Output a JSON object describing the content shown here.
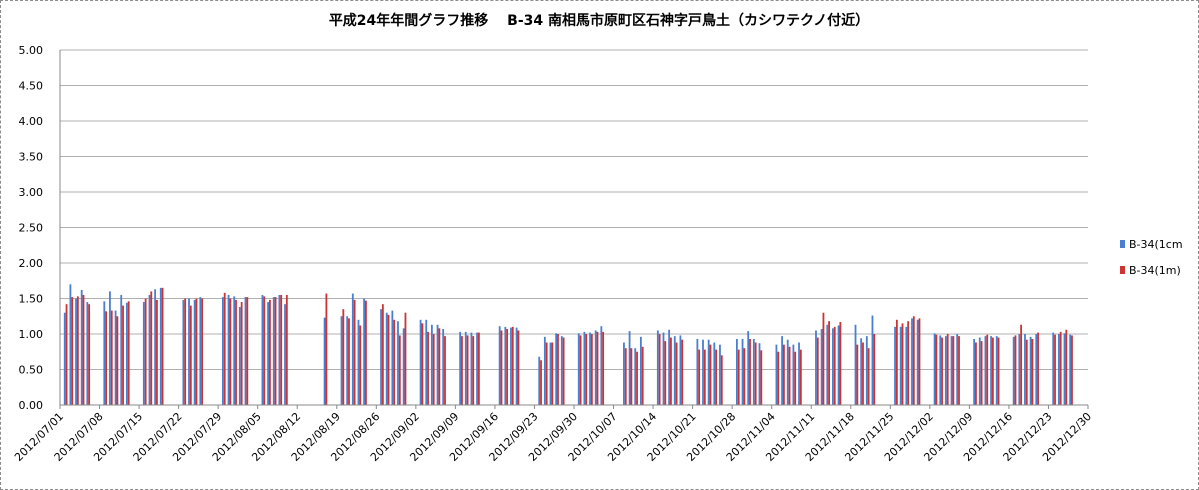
{
  "chart_data": {
    "type": "bar",
    "title": "平成24年年間グラフ推移　 B-34 南相馬市原町区石神字戸鳥土（カシワテクノ付近）",
    "xlabel": "",
    "ylabel": "",
    "ylim": [
      0,
      5
    ],
    "yticks": [
      "0.00",
      "0.50",
      "1.00",
      "1.50",
      "2.00",
      "2.50",
      "3.00",
      "3.50",
      "4.00",
      "4.50",
      "5.00"
    ],
    "xlim": [
      "2012/07/01",
      "2012/12/30"
    ],
    "xtick_labels": [
      "2012/07/01",
      "2012/07/08",
      "2012/07/15",
      "2012/07/22",
      "2012/07/29",
      "2012/08/05",
      "2012/08/12",
      "2012/08/19",
      "2012/08/26",
      "2012/09/02",
      "2012/09/09",
      "2012/09/16",
      "2012/09/23",
      "2012/09/30",
      "2012/10/07",
      "2012/10/14",
      "2012/10/21",
      "2012/10/28",
      "2012/11/04",
      "2012/11/11",
      "2012/11/18",
      "2012/11/25",
      "2012/12/02",
      "2012/12/09",
      "2012/12/16",
      "2012/12/23",
      "2012/12/30"
    ],
    "grid": "horizontal",
    "legend_position": "right",
    "colors": {
      "blue": "#4a7fd0",
      "red": "#cc3333"
    },
    "series": [
      {
        "name": "B-34(1cm",
        "color": "#4a7fd0",
        "points": [
          [
            "2012/07/02",
            1.3
          ],
          [
            "2012/07/03",
            1.7
          ],
          [
            "2012/07/04",
            1.5
          ],
          [
            "2012/07/05",
            1.62
          ],
          [
            "2012/07/06",
            1.45
          ],
          [
            "2012/07/09",
            1.46
          ],
          [
            "2012/07/10",
            1.6
          ],
          [
            "2012/07/11",
            1.33
          ],
          [
            "2012/07/12",
            1.55
          ],
          [
            "2012/07/13",
            1.44
          ],
          [
            "2012/07/16",
            1.45
          ],
          [
            "2012/07/17",
            1.55
          ],
          [
            "2012/07/18",
            1.63
          ],
          [
            "2012/07/19",
            1.65
          ],
          [
            "2012/07/23",
            1.48
          ],
          [
            "2012/07/24",
            1.5
          ],
          [
            "2012/07/25",
            1.48
          ],
          [
            "2012/07/26",
            1.52
          ],
          [
            "2012/07/30",
            1.52
          ],
          [
            "2012/07/31",
            1.55
          ],
          [
            "2012/08/01",
            1.53
          ],
          [
            "2012/08/02",
            1.38
          ],
          [
            "2012/08/03",
            1.52
          ],
          [
            "2012/08/06",
            1.55
          ],
          [
            "2012/08/07",
            1.45
          ],
          [
            "2012/08/08",
            1.52
          ],
          [
            "2012/08/09",
            1.55
          ],
          [
            "2012/08/10",
            1.42
          ],
          [
            "2012/08/17",
            1.23
          ],
          [
            "2012/08/20",
            1.25
          ],
          [
            "2012/08/21",
            1.25
          ],
          [
            "2012/08/22",
            1.57
          ],
          [
            "2012/08/23",
            1.2
          ],
          [
            "2012/08/24",
            1.5
          ],
          [
            "2012/08/27",
            1.35
          ],
          [
            "2012/08/28",
            1.3
          ],
          [
            "2012/08/29",
            1.33
          ],
          [
            "2012/08/30",
            1.18
          ],
          [
            "2012/08/31",
            1.08
          ],
          [
            "2012/09/03",
            1.2
          ],
          [
            "2012/09/04",
            1.2
          ],
          [
            "2012/09/05",
            1.13
          ],
          [
            "2012/09/06",
            1.13
          ],
          [
            "2012/09/07",
            1.07
          ],
          [
            "2012/09/10",
            1.03
          ],
          [
            "2012/09/11",
            1.03
          ],
          [
            "2012/09/12",
            1.02
          ],
          [
            "2012/09/13",
            1.02
          ],
          [
            "2012/09/17",
            1.11
          ],
          [
            "2012/09/18",
            1.1
          ],
          [
            "2012/09/19",
            1.09
          ],
          [
            "2012/09/20",
            1.09
          ],
          [
            "2012/09/24",
            0.68
          ],
          [
            "2012/09/25",
            0.96
          ],
          [
            "2012/09/26",
            0.88
          ],
          [
            "2012/09/27",
            1.01
          ],
          [
            "2012/09/28",
            0.97
          ],
          [
            "2012/10/01",
            1.01
          ],
          [
            "2012/10/02",
            1.03
          ],
          [
            "2012/10/03",
            1.02
          ],
          [
            "2012/10/04",
            1.05
          ],
          [
            "2012/10/05",
            1.11
          ],
          [
            "2012/10/09",
            0.88
          ],
          [
            "2012/10/10",
            1.04
          ],
          [
            "2012/10/11",
            0.8
          ],
          [
            "2012/10/12",
            0.96
          ],
          [
            "2012/10/15",
            1.05
          ],
          [
            "2012/10/16",
            1.02
          ],
          [
            "2012/10/17",
            1.06
          ],
          [
            "2012/10/18",
            0.97
          ],
          [
            "2012/10/19",
            0.98
          ],
          [
            "2012/10/22",
            0.93
          ],
          [
            "2012/10/23",
            0.92
          ],
          [
            "2012/10/24",
            0.92
          ],
          [
            "2012/10/25",
            0.88
          ],
          [
            "2012/10/26",
            0.85
          ],
          [
            "2012/10/29",
            0.93
          ],
          [
            "2012/10/30",
            0.93
          ],
          [
            "2012/10/31",
            1.04
          ],
          [
            "2012/11/01",
            0.93
          ],
          [
            "2012/11/02",
            0.87
          ],
          [
            "2012/11/05",
            0.85
          ],
          [
            "2012/11/06",
            0.97
          ],
          [
            "2012/11/07",
            0.92
          ],
          [
            "2012/11/08",
            0.85
          ],
          [
            "2012/11/09",
            0.88
          ],
          [
            "2012/11/12",
            1.05
          ],
          [
            "2012/11/13",
            1.07
          ],
          [
            "2012/11/14",
            1.13
          ],
          [
            "2012/11/15",
            1.08
          ],
          [
            "2012/11/16",
            1.12
          ],
          [
            "2012/11/19",
            1.13
          ],
          [
            "2012/11/20",
            0.94
          ],
          [
            "2012/11/21",
            0.97
          ],
          [
            "2012/11/22",
            1.26
          ],
          [
            "2012/11/26",
            1.1
          ],
          [
            "2012/11/27",
            1.1
          ],
          [
            "2012/11/28",
            1.1
          ],
          [
            "2012/11/29",
            1.22
          ],
          [
            "2012/11/30",
            1.2
          ],
          [
            "2012/12/03",
            1.01
          ],
          [
            "2012/12/04",
            0.98
          ],
          [
            "2012/12/05",
            0.97
          ],
          [
            "2012/12/06",
            0.97
          ],
          [
            "2012/12/07",
            1.0
          ],
          [
            "2012/12/10",
            0.93
          ],
          [
            "2012/12/11",
            0.95
          ],
          [
            "2012/12/12",
            0.97
          ],
          [
            "2012/12/13",
            0.97
          ],
          [
            "2012/12/14",
            0.97
          ],
          [
            "2012/12/17",
            0.96
          ],
          [
            "2012/12/18",
            1.0
          ],
          [
            "2012/12/19",
            1.0
          ],
          [
            "2012/12/20",
            0.96
          ],
          [
            "2012/12/21",
            1.0
          ],
          [
            "2012/12/24",
            1.02
          ],
          [
            "2012/12/25",
            1.0
          ],
          [
            "2012/12/26",
            1.01
          ],
          [
            "2012/12/27",
            0.99
          ]
        ]
      },
      {
        "name": "B-34(1m)",
        "color": "#cc3333",
        "points": [
          [
            "2012/07/02",
            1.42
          ],
          [
            "2012/07/03",
            1.52
          ],
          [
            "2012/07/04",
            1.53
          ],
          [
            "2012/07/05",
            1.55
          ],
          [
            "2012/07/06",
            1.42
          ],
          [
            "2012/07/09",
            1.32
          ],
          [
            "2012/07/10",
            1.33
          ],
          [
            "2012/07/11",
            1.25
          ],
          [
            "2012/07/12",
            1.4
          ],
          [
            "2012/07/13",
            1.46
          ],
          [
            "2012/07/16",
            1.5
          ],
          [
            "2012/07/17",
            1.6
          ],
          [
            "2012/07/18",
            1.48
          ],
          [
            "2012/07/19",
            1.65
          ],
          [
            "2012/07/23",
            1.5
          ],
          [
            "2012/07/24",
            1.4
          ],
          [
            "2012/07/25",
            1.5
          ],
          [
            "2012/07/26",
            1.5
          ],
          [
            "2012/07/30",
            1.58
          ],
          [
            "2012/07/31",
            1.5
          ],
          [
            "2012/08/01",
            1.48
          ],
          [
            "2012/08/02",
            1.45
          ],
          [
            "2012/08/03",
            1.52
          ],
          [
            "2012/08/06",
            1.53
          ],
          [
            "2012/08/07",
            1.48
          ],
          [
            "2012/08/08",
            1.52
          ],
          [
            "2012/08/09",
            1.55
          ],
          [
            "2012/08/10",
            1.55
          ],
          [
            "2012/08/17",
            1.57
          ],
          [
            "2012/08/20",
            1.35
          ],
          [
            "2012/08/21",
            1.22
          ],
          [
            "2012/08/22",
            1.48
          ],
          [
            "2012/08/23",
            1.12
          ],
          [
            "2012/08/24",
            1.47
          ],
          [
            "2012/08/27",
            1.42
          ],
          [
            "2012/08/28",
            1.27
          ],
          [
            "2012/08/29",
            1.2
          ],
          [
            "2012/08/30",
            0.98
          ],
          [
            "2012/08/31",
            1.3
          ],
          [
            "2012/09/03",
            1.15
          ],
          [
            "2012/09/04",
            1.03
          ],
          [
            "2012/09/05",
            1.0
          ],
          [
            "2012/09/06",
            1.08
          ],
          [
            "2012/09/07",
            0.97
          ],
          [
            "2012/09/10",
            0.97
          ],
          [
            "2012/09/11",
            0.98
          ],
          [
            "2012/09/12",
            0.97
          ],
          [
            "2012/09/13",
            1.02
          ],
          [
            "2012/09/17",
            1.05
          ],
          [
            "2012/09/18",
            1.07
          ],
          [
            "2012/09/19",
            1.1
          ],
          [
            "2012/09/20",
            1.05
          ],
          [
            "2012/09/24",
            0.63
          ],
          [
            "2012/09/25",
            0.88
          ],
          [
            "2012/09/26",
            0.88
          ],
          [
            "2012/09/27",
            1.0
          ],
          [
            "2012/09/28",
            0.95
          ],
          [
            "2012/10/01",
            0.98
          ],
          [
            "2012/10/02",
            1.0
          ],
          [
            "2012/10/03",
            1.0
          ],
          [
            "2012/10/04",
            1.03
          ],
          [
            "2012/10/05",
            1.03
          ],
          [
            "2012/10/09",
            0.8
          ],
          [
            "2012/10/10",
            0.8
          ],
          [
            "2012/10/11",
            0.75
          ],
          [
            "2012/10/12",
            0.82
          ],
          [
            "2012/10/15",
            1.0
          ],
          [
            "2012/10/16",
            0.9
          ],
          [
            "2012/10/17",
            0.95
          ],
          [
            "2012/10/18",
            0.88
          ],
          [
            "2012/10/19",
            0.92
          ],
          [
            "2012/10/22",
            0.78
          ],
          [
            "2012/10/23",
            0.78
          ],
          [
            "2012/10/24",
            0.85
          ],
          [
            "2012/10/25",
            0.78
          ],
          [
            "2012/10/26",
            0.7
          ],
          [
            "2012/10/29",
            0.78
          ],
          [
            "2012/10/30",
            0.8
          ],
          [
            "2012/10/31",
            0.93
          ],
          [
            "2012/11/01",
            0.88
          ],
          [
            "2012/11/02",
            0.77
          ],
          [
            "2012/11/05",
            0.75
          ],
          [
            "2012/11/06",
            0.85
          ],
          [
            "2012/11/07",
            0.82
          ],
          [
            "2012/11/08",
            0.75
          ],
          [
            "2012/11/09",
            0.78
          ],
          [
            "2012/11/12",
            0.95
          ],
          [
            "2012/11/13",
            1.3
          ],
          [
            "2012/11/14",
            1.18
          ],
          [
            "2012/11/15",
            1.1
          ],
          [
            "2012/11/16",
            1.17
          ],
          [
            "2012/11/19",
            0.85
          ],
          [
            "2012/11/20",
            0.88
          ],
          [
            "2012/11/21",
            0.8
          ],
          [
            "2012/11/22",
            1.0
          ],
          [
            "2012/11/26",
            1.2
          ],
          [
            "2012/11/27",
            1.15
          ],
          [
            "2012/11/28",
            1.18
          ],
          [
            "2012/11/29",
            1.25
          ],
          [
            "2012/11/30",
            1.22
          ],
          [
            "2012/12/03",
            0.99
          ],
          [
            "2012/12/04",
            0.95
          ],
          [
            "2012/12/05",
            1.0
          ],
          [
            "2012/12/06",
            0.97
          ],
          [
            "2012/12/07",
            0.97
          ],
          [
            "2012/12/10",
            0.88
          ],
          [
            "2012/12/11",
            0.9
          ],
          [
            "2012/12/12",
            0.99
          ],
          [
            "2012/12/13",
            0.95
          ],
          [
            "2012/12/14",
            0.95
          ],
          [
            "2012/12/17",
            0.98
          ],
          [
            "2012/12/18",
            1.13
          ],
          [
            "2012/12/19",
            0.92
          ],
          [
            "2012/12/20",
            0.93
          ],
          [
            "2012/12/21",
            1.02
          ],
          [
            "2012/12/24",
            0.99
          ],
          [
            "2012/12/25",
            1.03
          ],
          [
            "2012/12/26",
            1.06
          ],
          [
            "2012/12/27",
            0.98
          ]
        ]
      }
    ]
  }
}
